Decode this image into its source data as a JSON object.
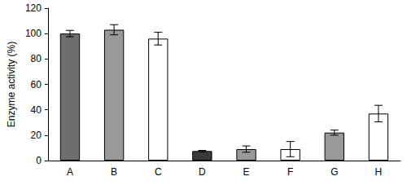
{
  "chart_data": {
    "type": "bar",
    "y_label": "Enzyme activity (%)",
    "categories": [
      "A",
      "B",
      "C",
      "D",
      "E",
      "F",
      "G",
      "H"
    ],
    "values": [
      100,
      103,
      96,
      7.5,
      9,
      9,
      22,
      37
    ],
    "errors": [
      2.5,
      4,
      5,
      0.5,
      2.5,
      6,
      2,
      6.5
    ],
    "colors": [
      "#6e6e6e",
      "#999999",
      "#ffffff",
      "#3a3a3a",
      "#999999",
      "#ffffff",
      "#999999",
      "#ffffff"
    ],
    "ylim": [
      0,
      120
    ],
    "yticks": [
      0,
      20,
      40,
      60,
      80,
      100,
      120
    ],
    "grid": false
  }
}
